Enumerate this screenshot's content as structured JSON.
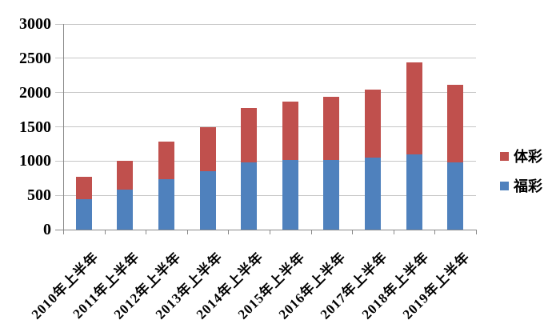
{
  "chart_data": {
    "type": "bar",
    "stacked": true,
    "title": "",
    "xlabel": "",
    "ylabel": "",
    "categories": [
      "2010年上半年",
      "2011年上半年",
      "2012年上半年",
      "2013年上半年",
      "2014年上半年",
      "2015年上半年",
      "2016年上半年",
      "2017年上半年",
      "2018年上半年",
      "2019年上半年"
    ],
    "series": [
      {
        "name": "福彩",
        "color": "#4F81BD",
        "values": [
          440,
          585,
          740,
          855,
          975,
          1020,
          1010,
          1045,
          1095,
          975
        ]
      },
      {
        "name": "体彩",
        "color": "#C0504D",
        "values": [
          330,
          420,
          540,
          635,
          800,
          850,
          925,
          995,
          1345,
          1140
        ]
      }
    ],
    "totals": [
      770,
      1005,
      1280,
      1490,
      1775,
      1870,
      1935,
      2040,
      2440,
      2115
    ],
    "ylim": [
      0,
      3000
    ],
    "yticks": [
      0,
      500,
      1000,
      1500,
      2000,
      2500,
      3000
    ],
    "grid": true,
    "legend_position": "right",
    "legend_order_top_to_bottom": [
      "体彩",
      "福彩"
    ]
  },
  "colors": {
    "series_ticai": "#C0504D",
    "series_fucai": "#4F81BD",
    "gridline": "#C6C6C6",
    "axis": "#898989",
    "text": "#000000",
    "background": "#FFFFFF"
  }
}
